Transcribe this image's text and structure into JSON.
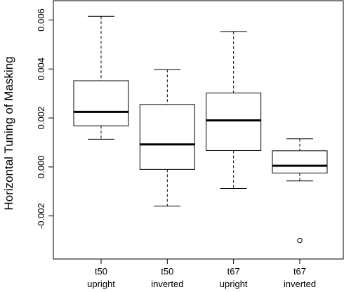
{
  "chart_data": {
    "type": "boxplot",
    "title": "",
    "xlabel": "",
    "ylabel": "Horizontal Tuning of Masking",
    "ylim": [
      -0.0033,
      0.0063
    ],
    "yticks": [
      "-0.002",
      "0.000",
      "0.002",
      "0.004",
      "0.006"
    ],
    "grid": false,
    "legend": "none",
    "categories": [
      {
        "line1": "t50",
        "line2": "upright"
      },
      {
        "line1": "t50",
        "line2": "inverted"
      },
      {
        "line1": "t67",
        "line2": "upright"
      },
      {
        "line1": "t67",
        "line2": "inverted"
      }
    ],
    "boxes": [
      {
        "whisker_low": 0.00113,
        "q1": 0.00168,
        "median": 0.00225,
        "q3": 0.00352,
        "whisker_high": 0.00615,
        "outliers": []
      },
      {
        "whisker_low": -0.0016,
        "q1": -0.0001,
        "median": 0.00092,
        "q3": 0.00255,
        "whisker_high": 0.00397,
        "outliers": []
      },
      {
        "whisker_low": -0.00088,
        "q1": 0.00067,
        "median": 0.0019,
        "q3": 0.00302,
        "whisker_high": 0.00553,
        "outliers": []
      },
      {
        "whisker_low": -0.00057,
        "q1": -0.00025,
        "median": 5e-05,
        "q3": 0.00066,
        "whisker_high": 0.00115,
        "outliers": [
          -0.003
        ]
      }
    ],
    "colors": {
      "stroke": "#000000",
      "fill": "#ffffff"
    }
  }
}
